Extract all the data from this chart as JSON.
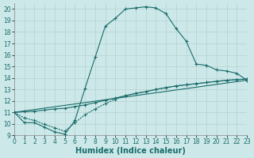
{
  "bg_color": "#cce8e8",
  "grid_color": "#b8d4d4",
  "line_color": "#1a6b6b",
  "xlabel": "Humidex (Indice chaleur)",
  "xlim": [
    0,
    23
  ],
  "ylim": [
    9,
    20.5
  ],
  "yticks": [
    9,
    10,
    11,
    12,
    13,
    14,
    15,
    16,
    17,
    18,
    19,
    20
  ],
  "xticks": [
    0,
    1,
    2,
    3,
    4,
    5,
    6,
    7,
    8,
    9,
    10,
    11,
    12,
    13,
    14,
    15,
    16,
    17,
    18,
    19,
    20,
    21,
    22,
    23
  ],
  "curve1_x": [
    0,
    1,
    2,
    3,
    4,
    5,
    6,
    7,
    8,
    9,
    10,
    11,
    12,
    13,
    14,
    15,
    16,
    17,
    18,
    19,
    20,
    21,
    22,
    23
  ],
  "curve1_y": [
    11.0,
    10.1,
    10.1,
    9.7,
    9.3,
    9.1,
    10.3,
    13.1,
    15.8,
    18.5,
    19.2,
    20.0,
    20.1,
    20.2,
    20.1,
    19.6,
    18.3,
    17.2,
    15.2,
    15.1,
    14.7,
    14.6,
    14.4,
    13.8
  ],
  "curve2_x": [
    0,
    1,
    2,
    3,
    4,
    5,
    6,
    7,
    8,
    9,
    10,
    11,
    12,
    13,
    14,
    15,
    16,
    17,
    18,
    19,
    20,
    21,
    22,
    23
  ],
  "curve2_y": [
    11.0,
    11.05,
    11.1,
    11.2,
    11.3,
    11.35,
    11.5,
    11.65,
    11.85,
    12.05,
    12.25,
    12.45,
    12.65,
    12.8,
    13.0,
    13.15,
    13.3,
    13.4,
    13.5,
    13.6,
    13.7,
    13.8,
    13.85,
    13.9
  ],
  "curve3_x": [
    0,
    23
  ],
  "curve3_y": [
    11.0,
    13.8
  ],
  "curve4_x": [
    0,
    1,
    2,
    3,
    4,
    5,
    6,
    7,
    8,
    9,
    10,
    11,
    12,
    13,
    14,
    15,
    16,
    17,
    18,
    19,
    20,
    21,
    22,
    23
  ],
  "curve4_y": [
    11.0,
    10.5,
    10.3,
    9.95,
    9.65,
    9.35,
    10.1,
    10.8,
    11.3,
    11.75,
    12.15,
    12.45,
    12.65,
    12.8,
    13.0,
    13.15,
    13.3,
    13.4,
    13.5,
    13.6,
    13.7,
    13.8,
    13.85,
    13.9
  ],
  "tick_fontsize": 5.5,
  "xlabel_fontsize": 7
}
